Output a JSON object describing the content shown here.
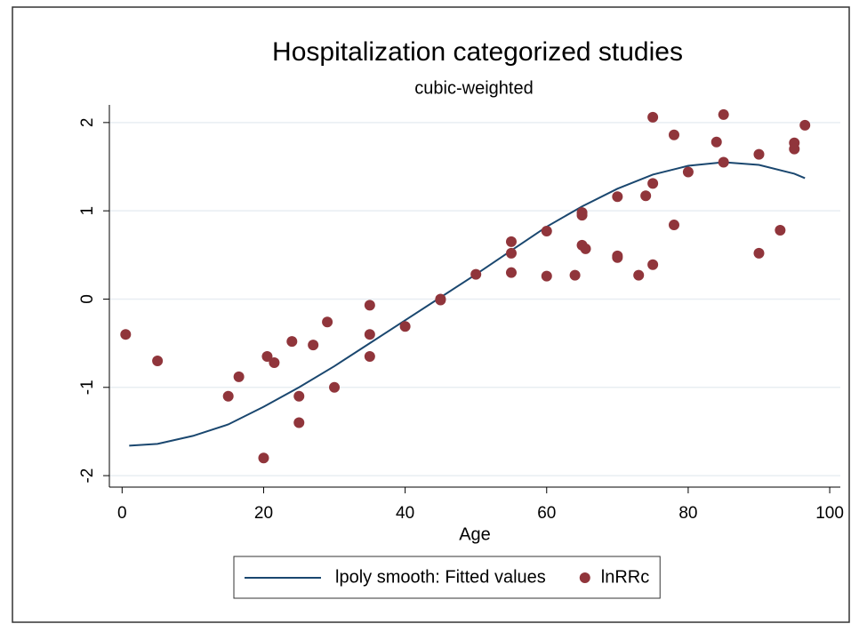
{
  "chart_data": {
    "type": "scatter",
    "title": "Hospitalization categorized studies",
    "subtitle": "cubic-weighted",
    "x_label": "Age",
    "xlim": [
      -1.8,
      101.5
    ],
    "ylim": [
      -2.13,
      2.2
    ],
    "xticks": [
      0,
      20,
      40,
      60,
      80,
      100
    ],
    "yticks": [
      -2,
      -1,
      0,
      1,
      2
    ],
    "grid": true,
    "legend_position": "bottom",
    "series": [
      {
        "name": "lpoly smooth: Fitted values",
        "type": "line",
        "color": "#1a476f",
        "x": [
          1,
          5,
          10,
          15,
          20,
          25,
          30,
          35,
          40,
          45,
          50,
          55,
          60,
          65,
          70,
          75,
          80,
          85,
          90,
          95,
          96.5
        ],
        "values": [
          -1.66,
          -1.64,
          -1.55,
          -1.42,
          -1.22,
          -1.0,
          -0.76,
          -0.5,
          -0.24,
          0.02,
          0.28,
          0.55,
          0.82,
          1.05,
          1.25,
          1.41,
          1.51,
          1.55,
          1.52,
          1.42,
          1.37
        ]
      },
      {
        "name": "lnRRc",
        "type": "scatter",
        "color": "#90353b",
        "x": [
          0.5,
          5,
          15,
          16.5,
          20,
          20.5,
          21.5,
          24,
          25,
          25,
          27,
          29,
          30,
          35,
          35,
          35,
          40,
          45,
          45,
          50,
          55,
          55,
          55,
          60,
          60,
          64,
          65,
          65,
          65,
          65.5,
          70,
          70,
          70,
          73,
          74,
          75,
          75,
          75,
          78,
          78,
          80,
          84,
          85,
          85,
          90,
          90,
          93,
          95,
          95,
          96.5
        ],
        "values": [
          -0.4,
          -0.7,
          -1.1,
          -0.88,
          -1.8,
          -0.65,
          -0.72,
          -0.48,
          -1.1,
          -1.4,
          -0.52,
          -0.26,
          -1.0,
          -0.07,
          -0.4,
          -0.65,
          -0.31,
          0.0,
          -0.01,
          0.28,
          0.65,
          0.52,
          0.3,
          0.77,
          0.26,
          0.27,
          0.98,
          0.95,
          0.61,
          0.57,
          1.16,
          0.49,
          0.47,
          0.27,
          1.17,
          2.06,
          1.31,
          0.39,
          1.86,
          0.84,
          1.44,
          1.78,
          2.09,
          1.55,
          1.64,
          0.52,
          0.78,
          1.77,
          1.7,
          1.97
        ]
      }
    ]
  }
}
